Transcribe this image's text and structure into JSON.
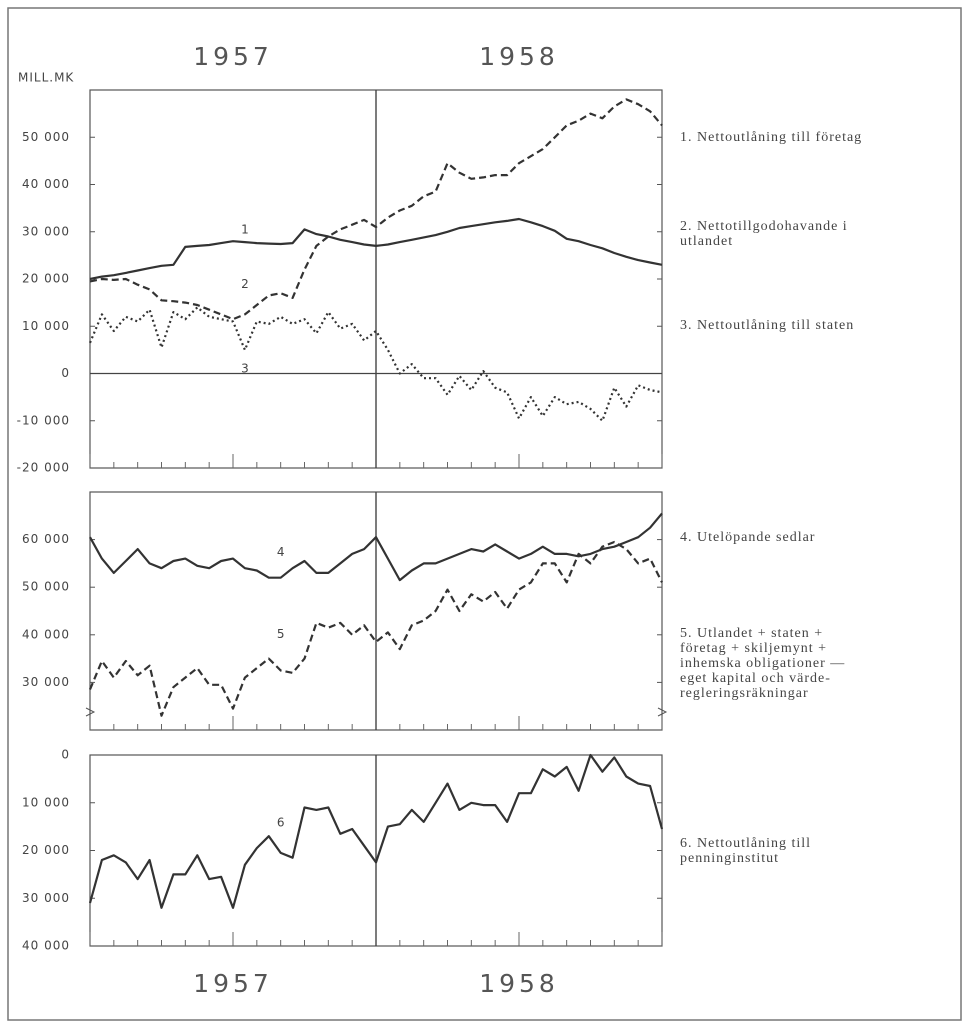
{
  "chart_data": [
    {
      "type": "line",
      "ylabel": "MILL.MK",
      "year_labels": [
        {
          "text": "1957",
          "x": 6
        },
        {
          "text": "1958",
          "x": 18
        }
      ],
      "x": [
        0,
        0.5,
        1,
        1.5,
        2,
        2.5,
        3,
        3.5,
        4,
        4.5,
        5,
        5.5,
        6,
        6.5,
        7,
        7.5,
        8,
        8.5,
        9,
        9.5,
        10,
        10.5,
        11,
        11.5,
        12,
        12.5,
        13,
        13.5,
        14,
        14.5,
        15,
        15.5,
        16,
        16.5,
        17,
        17.5,
        18,
        18.5,
        19,
        19.5,
        20,
        20.5,
        21,
        21.5,
        22,
        22.5,
        23,
        23.5,
        24
      ],
      "xlim": [
        0,
        24
      ],
      "xticks": [
        0,
        1,
        2,
        3,
        4,
        5,
        6,
        7,
        8,
        9,
        10,
        11,
        12,
        13,
        14,
        15,
        16,
        17,
        18,
        19,
        20,
        21,
        22,
        23,
        24
      ],
      "ylim": [
        -20000,
        60000
      ],
      "yticks": [
        {
          "value": 50000,
          "label": "50 000"
        },
        {
          "value": 40000,
          "label": "40 000"
        },
        {
          "value": 30000,
          "label": "30 000"
        },
        {
          "value": 20000,
          "label": "20 000"
        },
        {
          "value": 10000,
          "label": "10 000"
        },
        0,
        {
          "value": -10000,
          "label": "-10 000"
        },
        {
          "value": -20000,
          "label": "-20 000"
        }
      ],
      "baseline": 0,
      "divider_x": 12,
      "inverted": false,
      "series": [
        {
          "name": "1. Nettoutlåning till företag",
          "label": "1",
          "color": "#333333",
          "style": "solid",
          "values": [
            20000,
            20500,
            20800,
            21300,
            21800,
            22300,
            22800,
            23000,
            26800,
            27000,
            27200,
            27600,
            28000,
            27800,
            27600,
            27500,
            27400,
            27600,
            30500,
            29500,
            29000,
            28300,
            27800,
            27300,
            27000,
            27300,
            27800,
            28300,
            28800,
            29300,
            30000,
            30800,
            31200,
            31600,
            32000,
            32300,
            32700,
            32000,
            31200,
            30200,
            28500,
            28000,
            27200,
            26500,
            25500,
            24700,
            24000,
            23500,
            23000
          ]
        },
        {
          "name": "2. Nettotillgodohavande i\nutlandet",
          "label": "2",
          "color": "#333333",
          "style": "dashed",
          "values": [
            19500,
            20000,
            19800,
            20000,
            18800,
            17800,
            15500,
            15300,
            15000,
            14500,
            13500,
            12500,
            11500,
            12500,
            14500,
            16500,
            17000,
            16000,
            22000,
            27000,
            29000,
            30500,
            31500,
            32500,
            31000,
            33000,
            34500,
            35500,
            37500,
            38500,
            44500,
            42500,
            41200,
            41500,
            42000,
            42000,
            44500,
            46000,
            47500,
            50000,
            52500,
            53500,
            55000,
            54000,
            56500,
            58000,
            57000,
            55500,
            52500
          ]
        },
        {
          "name": "3. Nettoutlåning till staten",
          "label": "3",
          "color": "#333333",
          "style": "dotted",
          "values": [
            6500,
            12500,
            9000,
            12000,
            11000,
            13500,
            5500,
            13000,
            11500,
            14000,
            12000,
            11500,
            11000,
            5000,
            11000,
            10500,
            12000,
            10500,
            11500,
            8500,
            13000,
            9500,
            10500,
            7000,
            9000,
            5000,
            0,
            2000,
            -1000,
            -1000,
            -4500,
            -500,
            -3500,
            500,
            -3000,
            -4000,
            -9500,
            -5000,
            -9000,
            -5000,
            -6500,
            -6000,
            -7500,
            -10000,
            -3000,
            -7000,
            -2500,
            -3500,
            -4000
          ]
        }
      ]
    },
    {
      "type": "line",
      "x": [
        0,
        0.5,
        1,
        1.5,
        2,
        2.5,
        3,
        3.5,
        4,
        4.5,
        5,
        5.5,
        6,
        6.5,
        7,
        7.5,
        8,
        8.5,
        9,
        9.5,
        10,
        10.5,
        11,
        11.5,
        12,
        12.5,
        13,
        13.5,
        14,
        14.5,
        15,
        15.5,
        16,
        16.5,
        17,
        17.5,
        18,
        18.5,
        19,
        19.5,
        20,
        20.5,
        21,
        21.5,
        22,
        22.5,
        23,
        23.5,
        24
      ],
      "xlim": [
        0,
        24
      ],
      "xticks": [
        0,
        1,
        2,
        3,
        4,
        5,
        6,
        7,
        8,
        9,
        10,
        11,
        12,
        13,
        14,
        15,
        16,
        17,
        18,
        19,
        20,
        21,
        22,
        23,
        24
      ],
      "ylim": [
        20000,
        70000
      ],
      "yticks": [
        {
          "value": 60000,
          "label": "60 000"
        },
        {
          "value": 50000,
          "label": "50 000"
        },
        {
          "value": 40000,
          "label": "40 000"
        },
        {
          "value": 30000,
          "label": "30 000"
        }
      ],
      "divider_x": 12,
      "inverted": false,
      "series": [
        {
          "name": "4. Utelöpande sedlar",
          "label": "4",
          "color": "#333333",
          "style": "solid",
          "values": [
            60500,
            56000,
            53000,
            55500,
            58000,
            55000,
            54000,
            55500,
            56000,
            54500,
            54000,
            55500,
            56000,
            54000,
            53500,
            52000,
            52000,
            54000,
            55500,
            53000,
            53000,
            55000,
            57000,
            58000,
            60500,
            56000,
            51500,
            53500,
            55000,
            55000,
            56000,
            57000,
            58000,
            57500,
            59000,
            57500,
            56000,
            57000,
            58500,
            57000,
            57000,
            56500,
            57000,
            58000,
            58500,
            59500,
            60500,
            62500,
            65500
          ]
        },
        {
          "name": "5. Utlandet + staten +\nföretag + skiljemynt +\ninhemska obligationer —\neget kapital och värde-\nregleringsräkningar",
          "label": "5",
          "color": "#333333",
          "style": "dashed",
          "values": [
            28500,
            34500,
            31000,
            34500,
            31500,
            33500,
            23000,
            29000,
            31000,
            33000,
            29500,
            29500,
            24500,
            31000,
            33000,
            35000,
            32500,
            32000,
            35000,
            42500,
            41500,
            42500,
            40000,
            42000,
            38500,
            40500,
            37000,
            42000,
            43000,
            45000,
            49500,
            45000,
            48500,
            47000,
            49000,
            45500,
            49500,
            51000,
            55000,
            55000,
            51000,
            57000,
            55000,
            58500,
            59500,
            58000,
            55000,
            56000,
            51000
          ]
        }
      ]
    },
    {
      "type": "line",
      "year_labels": [
        {
          "text": "1957",
          "x": 6
        },
        {
          "text": "1958",
          "x": 18
        }
      ],
      "x": [
        0,
        0.5,
        1,
        1.5,
        2,
        2.5,
        3,
        3.5,
        4,
        4.5,
        5,
        5.5,
        6,
        6.5,
        7,
        7.5,
        8,
        8.5,
        9,
        9.5,
        10,
        10.5,
        11,
        11.5,
        12,
        12.5,
        13,
        13.5,
        14,
        14.5,
        15,
        15.5,
        16,
        16.5,
        17,
        17.5,
        18,
        18.5,
        19,
        19.5,
        20,
        20.5,
        21,
        21.5,
        22,
        22.5,
        23,
        23.5,
        24
      ],
      "xlim": [
        0,
        24
      ],
      "xticks": [
        0,
        1,
        2,
        3,
        4,
        5,
        6,
        7,
        8,
        9,
        10,
        11,
        12,
        13,
        14,
        15,
        16,
        17,
        18,
        19,
        20,
        21,
        22,
        23,
        24
      ],
      "ylim": [
        0,
        40000
      ],
      "yticks": [
        0,
        {
          "value": 10000,
          "label": "10 000"
        },
        {
          "value": 20000,
          "label": "20 000"
        },
        {
          "value": 30000,
          "label": "30 000"
        },
        {
          "value": 40000,
          "label": "40 000"
        }
      ],
      "divider_x": 12,
      "inverted": true,
      "series": [
        {
          "name": "6. Nettoutlåning till\npenninginstitut",
          "label": "6",
          "color": "#333333",
          "style": "solid",
          "values": [
            31000,
            22000,
            21000,
            22500,
            26000,
            22000,
            32000,
            25000,
            25000,
            21000,
            26000,
            25500,
            32000,
            23000,
            19500,
            17000,
            20500,
            21500,
            11000,
            11500,
            11000,
            16500,
            15500,
            19000,
            22500,
            15000,
            14500,
            11500,
            14000,
            10000,
            6000,
            11500,
            10000,
            10500,
            10500,
            14000,
            8000,
            8000,
            3000,
            4500,
            2500,
            7500,
            0,
            3500,
            500,
            4500,
            6000,
            6500,
            15500
          ]
        }
      ]
    }
  ]
}
